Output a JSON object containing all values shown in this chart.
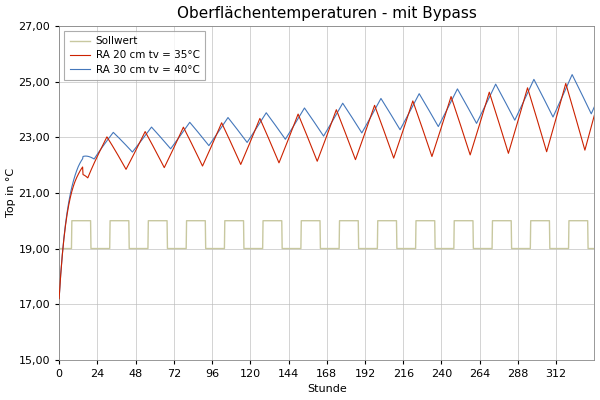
{
  "title": "Oberflächentemperaturen - mit Bypass",
  "xlabel": "Stunde",
  "ylabel": "Top in °C",
  "xlim": [
    0,
    336
  ],
  "ylim": [
    15.0,
    27.0
  ],
  "yticks": [
    15.0,
    17.0,
    19.0,
    21.0,
    23.0,
    25.0,
    27.0
  ],
  "xticks": [
    0,
    24,
    48,
    72,
    96,
    120,
    144,
    168,
    192,
    216,
    240,
    264,
    288,
    312
  ],
  "legend_labels": [
    "Sollwert",
    "RA 20 cm tv = 35°C",
    "RA 30 cm tv = 40°C"
  ],
  "sollwert_color": "#c8c8a0",
  "red_color": "#cc2200",
  "blue_color": "#4477bb",
  "background_color": "#ffffff",
  "grid_color": "#bbbbbb",
  "title_fontsize": 11,
  "axis_fontsize": 8,
  "tick_fontsize": 8
}
